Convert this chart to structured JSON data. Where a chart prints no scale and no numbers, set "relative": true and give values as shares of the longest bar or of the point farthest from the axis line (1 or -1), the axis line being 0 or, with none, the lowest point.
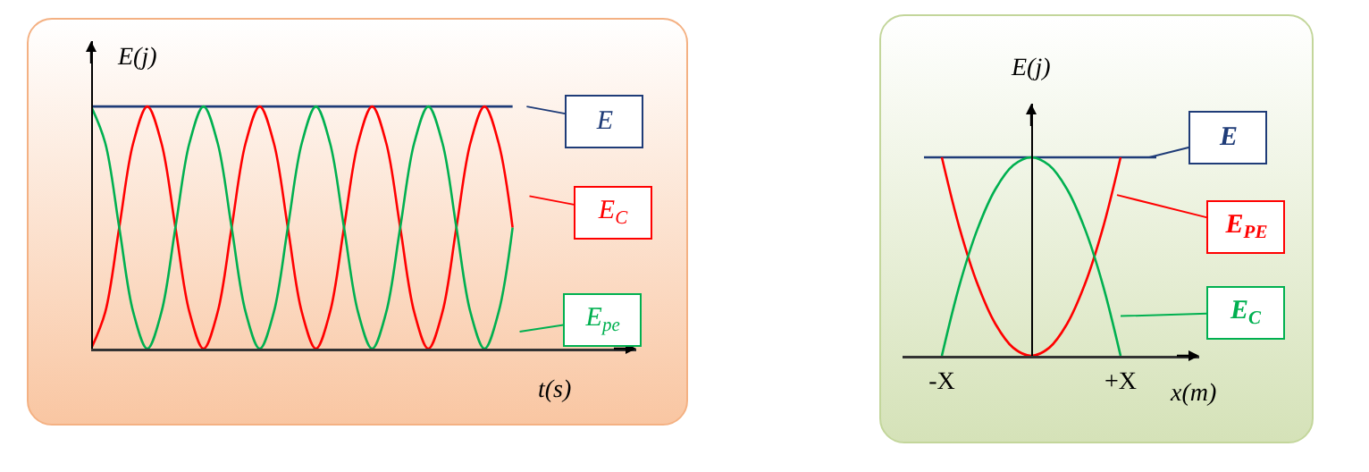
{
  "chart_data": [
    {
      "type": "line",
      "relative": true,
      "legend": "right",
      "xlabel": "t(s)",
      "ylabel": "E(j)",
      "categories": [
        null,
        null,
        null,
        null,
        null,
        null,
        null,
        null,
        null,
        null,
        null,
        null,
        null,
        null,
        null,
        null,
        null,
        null,
        null,
        null,
        null,
        null,
        null,
        null,
        null,
        null,
        null,
        null,
        null,
        null,
        null
      ],
      "series": [
        {
          "name": "E",
          "color": "#1f3c78",
          "values": [
            1,
            1,
            1,
            1,
            1,
            1,
            1,
            1,
            1,
            1,
            1,
            1,
            1,
            1,
            1,
            1,
            1,
            1,
            1,
            1,
            1,
            1,
            1,
            1,
            1,
            1,
            1,
            1,
            1,
            1,
            1
          ]
        },
        {
          "name": "E$_{C}$",
          "color": "#ff0000",
          "values": [
            0,
            0.15,
            0.5,
            0.85,
            1,
            0.85,
            0.5,
            0.15,
            0,
            0.15,
            0.5,
            0.85,
            1,
            0.85,
            0.5,
            0.15,
            0,
            0.15,
            0.5,
            0.85,
            1,
            0.85,
            0.5,
            0.15,
            0,
            0.15,
            0.5,
            0.85,
            1,
            0.85,
            0.5
          ]
        },
        {
          "name": "E$_{pe}$",
          "color": "#00b050",
          "values": [
            1,
            0.85,
            0.5,
            0.15,
            0,
            0.15,
            0.5,
            0.85,
            1,
            0.85,
            0.5,
            0.15,
            0,
            0.15,
            0.5,
            0.85,
            1,
            0.85,
            0.5,
            0.15,
            0,
            0.15,
            0.5,
            0.85,
            1,
            0.85,
            0.5,
            0.15,
            0,
            0.15,
            0.5
          ]
        }
      ]
    },
    {
      "type": "line",
      "relative": true,
      "legend": "right",
      "xlabel": "x(m)",
      "ylabel": "E(j)",
      "categories": [
        null,
        "-X",
        null,
        null,
        null,
        null,
        null,
        null,
        null,
        null,
        null,
        "+X",
        null,
        null
      ],
      "series": [
        {
          "name": "E",
          "color": "#1f3c78",
          "values": [
            1,
            1,
            1,
            1,
            1,
            1,
            1,
            1,
            1,
            1,
            1,
            1,
            1,
            1
          ]
        },
        {
          "name": "E$_{PE}$",
          "color": "#ff0000",
          "values": [
            null,
            1,
            0.64,
            0.36,
            0.16,
            0.04,
            0,
            0.04,
            0.16,
            0.36,
            0.64,
            1,
            null,
            null
          ]
        },
        {
          "name": "E$_{C}$",
          "color": "#00b050",
          "values": [
            null,
            0,
            0.36,
            0.64,
            0.84,
            0.96,
            1,
            0.96,
            0.84,
            0.64,
            0.36,
            0,
            null,
            null
          ]
        }
      ]
    }
  ]
}
